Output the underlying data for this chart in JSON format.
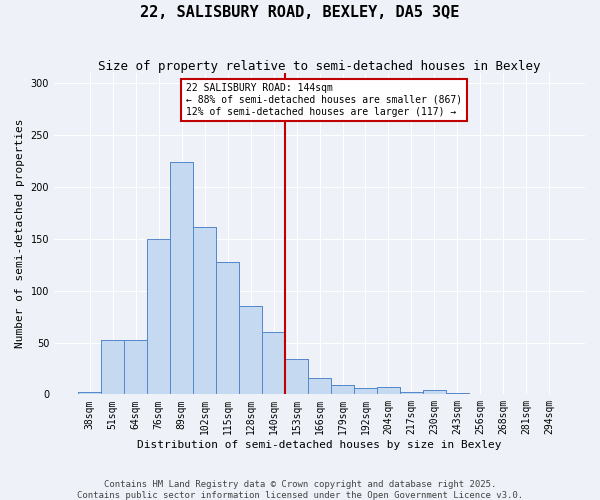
{
  "title": "22, SALISBURY ROAD, BEXLEY, DA5 3QE",
  "subtitle": "Size of property relative to semi-detached houses in Bexley",
  "xlabel": "Distribution of semi-detached houses by size in Bexley",
  "ylabel": "Number of semi-detached properties",
  "categories": [
    "38sqm",
    "51sqm",
    "64sqm",
    "76sqm",
    "89sqm",
    "102sqm",
    "115sqm",
    "128sqm",
    "140sqm",
    "153sqm",
    "166sqm",
    "179sqm",
    "192sqm",
    "204sqm",
    "217sqm",
    "230sqm",
    "243sqm",
    "256sqm",
    "268sqm",
    "281sqm",
    "294sqm"
  ],
  "bar_heights": [
    2,
    52,
    52,
    150,
    224,
    161,
    128,
    85,
    60,
    34,
    16,
    9,
    6,
    7,
    2,
    4,
    1,
    0,
    0,
    0,
    0
  ],
  "bar_color": "#c5d9f0",
  "bar_edge_color": "#5588cc",
  "vline_index": 8.5,
  "vline_color": "#c00000",
  "annotation_title": "22 SALISBURY ROAD: 144sqm",
  "annotation_line1": "← 88% of semi-detached houses are smaller (867)",
  "annotation_line2": "12% of semi-detached houses are larger (117) →",
  "annotation_box_color": "#c00000",
  "ylim": [
    0,
    310
  ],
  "yticks": [
    0,
    50,
    100,
    150,
    200,
    250,
    300
  ],
  "footer": "Contains HM Land Registry data © Crown copyright and database right 2025.\nContains public sector information licensed under the Open Government Licence v3.0.",
  "bg_color": "#eef2f8",
  "grid_color": "#ffffff",
  "title_fontsize": 11,
  "subtitle_fontsize": 9,
  "label_fontsize": 8,
  "tick_fontsize": 7,
  "footer_fontsize": 6.5
}
